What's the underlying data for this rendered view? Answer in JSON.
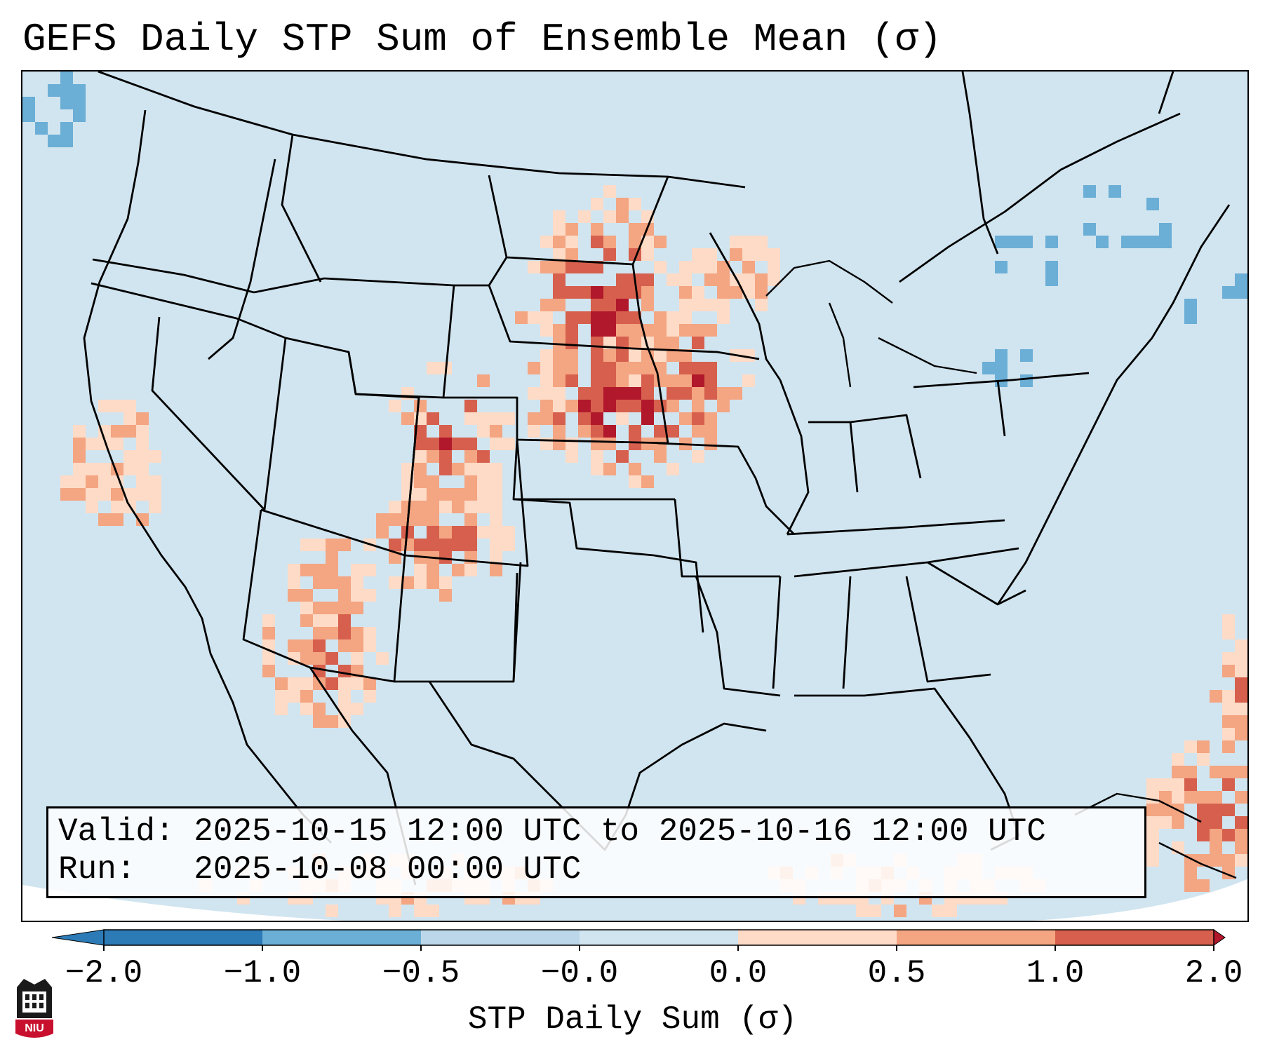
{
  "title": "GEFS Daily STP Sum of Ensemble Mean (σ)",
  "info": {
    "valid_label": "Valid:",
    "valid_value": "2025-10-15 12:00 UTC to 2025-10-16 12:00 UTC",
    "run_label": "Run:",
    "run_value": "2025-10-08 00:00 UTC"
  },
  "colorbar": {
    "label": "STP Daily Sum (σ)",
    "ticks": [
      "−2.0",
      "−1.0",
      "−0.5",
      "−0.0",
      "0.0",
      "0.5",
      "1.0",
      "2.0"
    ],
    "colors": [
      "#2c7bb6",
      "#6baed6",
      "#bcd7e9",
      "#d1e5f0",
      "#fddbc7",
      "#f4a582",
      "#d6604d",
      "#b2182b"
    ],
    "extend": "both"
  },
  "map": {
    "background_color": "#d1e5f0",
    "projection": "Lambert conformal, CONUS",
    "borders": "state and country lines in black"
  },
  "chart_data": {
    "type": "heatmap",
    "title": "GEFS Daily STP Sum of Ensemble Mean (σ)",
    "variable": "STP Daily Sum (σ)",
    "levels": [
      -2.0,
      -1.0,
      -0.5,
      -0.0,
      0.0,
      0.5,
      1.0,
      2.0
    ],
    "regions_of_note": [
      {
        "region": "Nebraska / Kansas / South Dakota / Minnesota",
        "value_class": "1.0 to 2.0"
      },
      {
        "region": "Iowa / western Wisconsin",
        "value_class": "1.0 to 2.0"
      },
      {
        "region": "Colorado / New Mexico",
        "value_class": "0.5 to 2.0"
      },
      {
        "region": "Arizona / northwest Mexico",
        "value_class": "0.5 to 2.0"
      },
      {
        "region": "Caribbean / Atlantic southeast",
        "value_class": "0.0 to 2.0"
      },
      {
        "region": "Northeast / Great Lakes",
        "value_class": "-1.0 to -0.5"
      }
    ]
  },
  "logo": {
    "text": "NIU",
    "color": "#c8102e"
  }
}
